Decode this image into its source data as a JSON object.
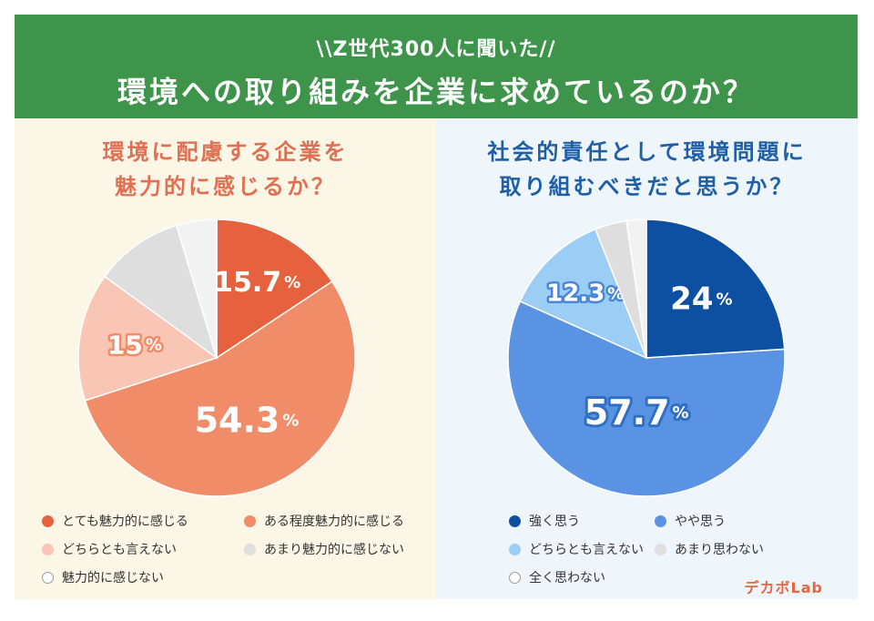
{
  "header": {
    "subtitle": "\\\\Z世代300人に聞いた//",
    "title": "環境への取り組みを企業に求めているのか？"
  },
  "brand": "デカボLab",
  "chart_data": [
    {
      "type": "pie",
      "title_line1": "環境に配慮する企業を",
      "title_line2": "魅力的に感じるか？",
      "categories": [
        "とても魅力的に感じる",
        "ある程度魅力的に感じる",
        "どちらとも言えない",
        "あまり魅力的に感じない",
        "魅力的に感じない"
      ],
      "values": [
        15.7,
        54.3,
        15,
        10.3,
        4.7
      ],
      "labels": [
        "15.7",
        "54.3",
        "15",
        "",
        ""
      ],
      "unit": "%",
      "colors": [
        "#e6623e",
        "#f08c68",
        "#f9c6b6",
        "#dedede",
        "#f2f2f2"
      ],
      "legend_placement": "bottom"
    },
    {
      "type": "pie",
      "title_line1": "社会的責任として環境問題に",
      "title_line2": "取り組むべきだと思うか？",
      "categories": [
        "強く思う",
        "やや思う",
        "どちらとも言えない",
        "あまり思わない",
        "全く思わない"
      ],
      "values": [
        24,
        57.7,
        12.3,
        3.7,
        2.3
      ],
      "labels": [
        "24",
        "57.7",
        "12.3",
        "",
        ""
      ],
      "unit": "%",
      "colors": [
        "#0d4fa0",
        "#5a93e4",
        "#9ccdf4",
        "#dedede",
        "#f2f2f2"
      ],
      "legend_placement": "bottom"
    }
  ]
}
